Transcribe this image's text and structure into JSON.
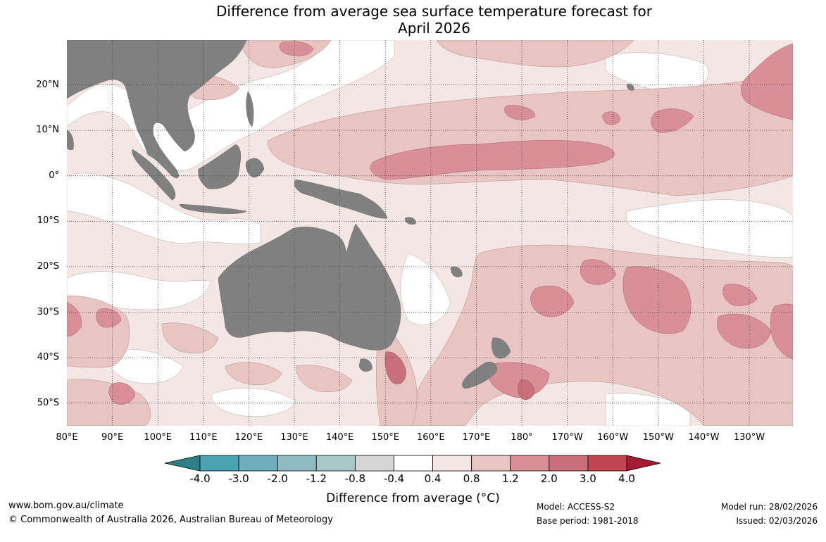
{
  "title": {
    "line1": "Difference from average sea surface temperature forecast for",
    "line2": "April 2026"
  },
  "map": {
    "region": "Pacific and Indian Ocean, Australia",
    "latitude_labels": [
      "20°N",
      "10°N",
      "0°",
      "10°S",
      "20°S",
      "30°S",
      "40°S",
      "50°S"
    ],
    "longitude_labels": [
      "80°E",
      "90°E",
      "100°E",
      "110°E",
      "120°E",
      "130°E",
      "140°E",
      "150°E",
      "160°E",
      "170°E",
      "180°",
      "170°W",
      "160°W",
      "150°W",
      "140°W",
      "130°W"
    ],
    "colors": {
      "land": "#808080",
      "grid": "#444444"
    }
  },
  "colorbar": {
    "ticks": [
      "-4.0",
      "-3.0",
      "-2.0",
      "-1.2",
      "-0.8",
      "-0.4",
      "0.4",
      "0.8",
      "1.2",
      "2.0",
      "3.0",
      "4.0"
    ],
    "colors": [
      "#2d7f88",
      "#4aa3b2",
      "#6fafbc",
      "#8fbac2",
      "#a9c8ca",
      "#d6d6d6",
      "#ffffff",
      "#f4e6e5",
      "#e8c5c2",
      "#d98f98",
      "#c9707c",
      "#bf4553",
      "#a81a33"
    ],
    "label": "Difference from average (°C)"
  },
  "footer": {
    "website": "www.bom.gov.au/climate",
    "copyright": "© Commonwealth of Australia 2026, Australian Bureau of Meteorology",
    "model": "Model: ACCESS-S2",
    "base_period": "Base period: 1981-2018",
    "model_run": "Model run: 28/02/2026",
    "issued": "Issued: 02/03/2026"
  }
}
